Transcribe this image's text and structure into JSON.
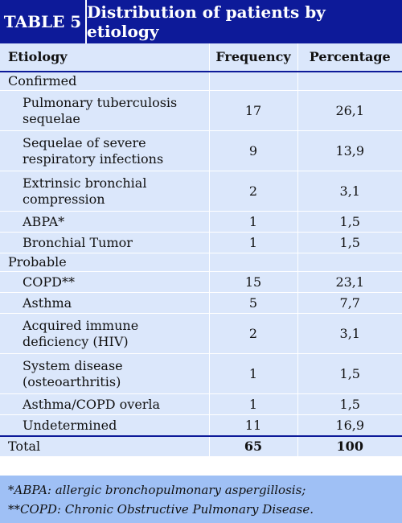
{
  "banner": {
    "label": "TABLE 5",
    "title": "Distribution of patients by etiology"
  },
  "table": {
    "headers": [
      "Etiology",
      "Frequency",
      "Percentage"
    ],
    "groups": [
      {
        "name": "Confirmed",
        "rows": [
          {
            "etiology": "Pulmonary tuberculosis sequelae",
            "frequency": "17",
            "percentage": "26,1"
          },
          {
            "etiology": "Sequelae of severe respiratory infections",
            "frequency": "9",
            "percentage": "13,9"
          },
          {
            "etiology": "Extrinsic bronchial compression",
            "frequency": "2",
            "percentage": "3,1"
          },
          {
            "etiology": "ABPA*",
            "frequency": "1",
            "percentage": "1,5"
          },
          {
            "etiology": "Bronchial Tumor",
            "frequency": "1",
            "percentage": "1,5"
          }
        ]
      },
      {
        "name": "Probable",
        "rows": [
          {
            "etiology": "COPD**",
            "frequency": "15",
            "percentage": "23,1"
          },
          {
            "etiology": "Asthma",
            "frequency": "5",
            "percentage": "7,7"
          },
          {
            "etiology": "Acquired immune deficiency (HIV)",
            "frequency": "2",
            "percentage": "3,1"
          },
          {
            "etiology": "System disease (osteoarthritis)",
            "frequency": "1",
            "percentage": "1,5"
          },
          {
            "etiology": "Asthma/COPD overla",
            "frequency": "1",
            "percentage": "1,5"
          },
          {
            "etiology": "Undetermined",
            "frequency": "11",
            "percentage": "16,9"
          }
        ]
      }
    ],
    "total": {
      "label": "Total",
      "frequency": "65",
      "percentage": "100"
    }
  },
  "footnotes": [
    "*ABPA: allergic bronchopulmonary aspergillosis;",
    "**COPD: Chronic Obstructive Pulmonary Disease."
  ],
  "colors": {
    "banner": "#0d1a99",
    "table_bg": "#dbe7fb",
    "footnote_bg": "#9fc0f5"
  }
}
